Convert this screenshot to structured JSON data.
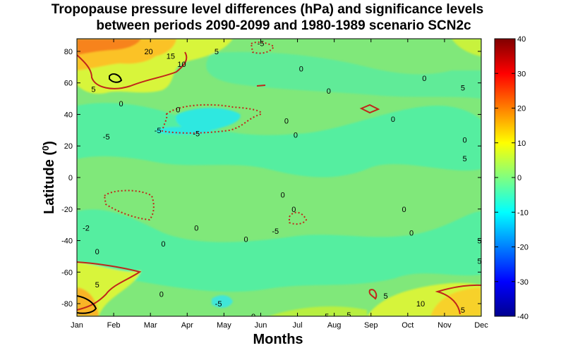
{
  "chart_data": {
    "type": "heatmap",
    "title_line1": "Tropopause pressure level differences (hPa) and significance levels",
    "title_line2": "between periods 2090-2099 and 1980-1989 scenario SCN2c",
    "xlabel": "Months",
    "ylabel": "Latitude (",
    "ylabel_sup": "0",
    "ylabel_close": ")",
    "x_ticks": [
      "Jan",
      "Feb",
      "Mar",
      "Apr",
      "May",
      "Jun",
      "Jul",
      "Aug",
      "Sep",
      "Oct",
      "Nov",
      "Dec"
    ],
    "y_ticks": [
      "80",
      "60",
      "40",
      "20",
      "0",
      "-20",
      "-40",
      "-60",
      "-80"
    ],
    "ylim": [
      -88,
      88
    ],
    "colorbar": {
      "range": [
        -40,
        40
      ],
      "ticks": [
        "40",
        "30",
        "20",
        "10",
        "0",
        "-10",
        "-20",
        "-30",
        "-40"
      ],
      "colormap": "jet"
    },
    "contour_labels": [
      {
        "text": "20",
        "month": 1.95,
        "lat": 80
      },
      {
        "text": "15",
        "month": 2.55,
        "lat": 77
      },
      {
        "text": "10",
        "month": 2.85,
        "lat": 72
      },
      {
        "text": "5",
        "month": 3.8,
        "lat": 80
      },
      {
        "text": "-5",
        "month": 5.0,
        "lat": 85
      },
      {
        "text": "0",
        "month": 6.1,
        "lat": 69
      },
      {
        "text": "0",
        "month": 9.45,
        "lat": 63
      },
      {
        "text": "5",
        "month": 0.45,
        "lat": 56
      },
      {
        "text": "0",
        "month": 1.2,
        "lat": 47
      },
      {
        "text": "0",
        "month": 6.85,
        "lat": 55
      },
      {
        "text": "5",
        "month": 10.5,
        "lat": 57
      },
      {
        "text": "0",
        "month": 2.75,
        "lat": 43
      },
      {
        "text": "-5",
        "month": 2.2,
        "lat": 30
      },
      {
        "text": "-5",
        "month": 3.25,
        "lat": 28
      },
      {
        "text": "-5",
        "month": 0.8,
        "lat": 26
      },
      {
        "text": "0",
        "month": 5.7,
        "lat": 36
      },
      {
        "text": "0",
        "month": 5.95,
        "lat": 27
      },
      {
        "text": "0",
        "month": 8.6,
        "lat": 37
      },
      {
        "text": "0",
        "month": 10.55,
        "lat": 24
      },
      {
        "text": "5",
        "month": 10.55,
        "lat": 12
      },
      {
        "text": "0",
        "month": 5.6,
        "lat": -11
      },
      {
        "text": "0",
        "month": 5.9,
        "lat": -20
      },
      {
        "text": "0",
        "month": 8.9,
        "lat": -20
      },
      {
        "text": "0",
        "month": 9.1,
        "lat": -35
      },
      {
        "text": "0",
        "month": 3.25,
        "lat": -32
      },
      {
        "text": "0",
        "month": 2.35,
        "lat": -42
      },
      {
        "text": "-5",
        "month": 5.4,
        "lat": -34
      },
      {
        "text": "0",
        "month": 4.6,
        "lat": -39
      },
      {
        "text": "-2",
        "month": 0.25,
        "lat": -32
      },
      {
        "text": "0",
        "month": 0.55,
        "lat": -47
      },
      {
        "text": "5",
        "month": 10.95,
        "lat": -40
      },
      {
        "text": "5",
        "month": 10.95,
        "lat": -53
      },
      {
        "text": "5",
        "month": 0.55,
        "lat": -68
      },
      {
        "text": "0",
        "month": 2.3,
        "lat": -74
      },
      {
        "text": "-5",
        "month": 3.85,
        "lat": -80
      },
      {
        "text": "0",
        "month": 4.8,
        "lat": -88
      },
      {
        "text": "5",
        "month": 8.4,
        "lat": -75
      },
      {
        "text": "10",
        "month": 9.35,
        "lat": -80
      },
      {
        "text": "5",
        "month": 10.5,
        "lat": -84
      },
      {
        "text": "5",
        "month": 6.8,
        "lat": -88
      },
      {
        "text": "5",
        "month": 7.4,
        "lat": -87
      }
    ]
  }
}
